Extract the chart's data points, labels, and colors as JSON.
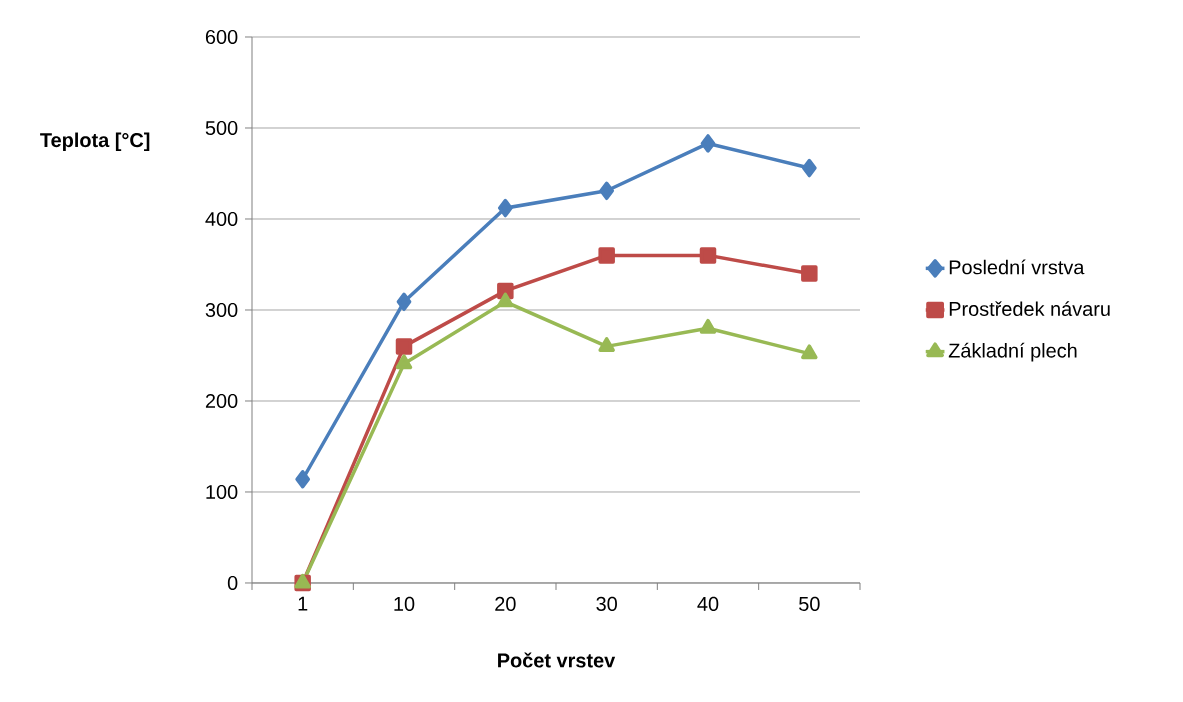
{
  "chart_data": {
    "type": "line",
    "xlabel": "Počet vrstev",
    "ylabel": "Teplota [°C]",
    "categories": [
      "1",
      "10",
      "20",
      "30",
      "40",
      "50"
    ],
    "series": [
      {
        "name": "Poslední vrstva",
        "color": "#4a7ebb",
        "marker": "diamond",
        "values": [
          114,
          309,
          412,
          431,
          483,
          456
        ]
      },
      {
        "name": "Prostředek návaru",
        "color": "#be4b48",
        "marker": "square",
        "values": [
          0,
          260,
          321,
          360,
          360,
          340
        ]
      },
      {
        "name": "Základní plech",
        "color": "#98b954",
        "marker": "triangle",
        "values": [
          0,
          241,
          309,
          260,
          280,
          252
        ]
      }
    ],
    "ylim": [
      0,
      600
    ],
    "yticks": [
      0,
      100,
      200,
      300,
      400,
      500,
      600
    ],
    "grid": "y",
    "legend": "right",
    "line_style": "solid"
  }
}
